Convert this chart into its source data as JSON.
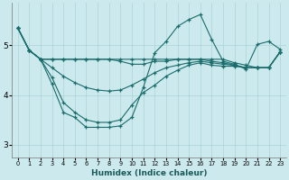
{
  "xlabel": "Humidex (Indice chaleur)",
  "bg_color": "#cceaed",
  "grid_color": "#aad4d8",
  "line_color": "#1a6b6b",
  "xlim": [
    -0.5,
    23.5
  ],
  "ylim": [
    2.75,
    5.85
  ],
  "yticks": [
    3,
    4,
    5
  ],
  "xticks": [
    0,
    1,
    2,
    3,
    4,
    5,
    6,
    7,
    8,
    9,
    10,
    11,
    12,
    13,
    14,
    15,
    16,
    17,
    18,
    19,
    20,
    21,
    22,
    23
  ],
  "series": [
    [
      5.35,
      4.9,
      4.72,
      4.72,
      4.72,
      4.72,
      4.72,
      4.72,
      4.72,
      4.72,
      4.72,
      4.72,
      4.72,
      4.72,
      4.72,
      4.72,
      4.72,
      4.72,
      4.72,
      4.65,
      4.6,
      4.55,
      4.55,
      4.87
    ],
    [
      5.35,
      4.9,
      4.72,
      4.35,
      3.85,
      3.65,
      3.5,
      3.45,
      3.45,
      3.5,
      3.8,
      4.05,
      4.2,
      4.38,
      4.5,
      4.6,
      4.65,
      4.6,
      4.58,
      4.58,
      4.55,
      4.55,
      4.55,
      4.87
    ],
    [
      5.35,
      4.9,
      4.72,
      4.22,
      3.65,
      3.55,
      3.35,
      3.35,
      3.35,
      3.38,
      3.55,
      4.15,
      4.85,
      5.08,
      5.38,
      5.52,
      5.62,
      5.12,
      4.68,
      4.62,
      4.52,
      5.02,
      5.08,
      4.92
    ],
    [
      5.35,
      4.9,
      4.72,
      4.72,
      4.72,
      4.72,
      4.72,
      4.72,
      4.72,
      4.68,
      4.62,
      4.62,
      4.68,
      4.68,
      4.72,
      4.72,
      4.72,
      4.68,
      4.65,
      4.6,
      4.55,
      4.55,
      4.55,
      4.87
    ],
    [
      5.35,
      4.9,
      4.72,
      4.55,
      4.38,
      4.25,
      4.15,
      4.1,
      4.08,
      4.1,
      4.2,
      4.32,
      4.45,
      4.55,
      4.6,
      4.65,
      4.68,
      4.65,
      4.62,
      4.6,
      4.55,
      4.55,
      4.55,
      4.87
    ]
  ]
}
